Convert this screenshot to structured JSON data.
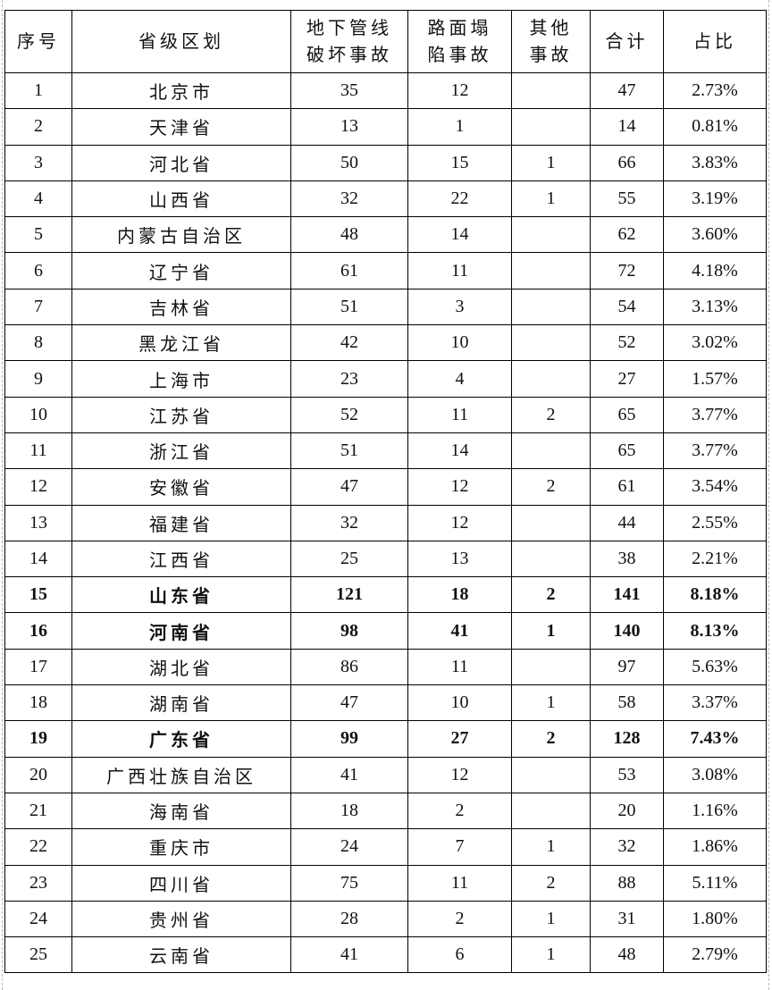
{
  "headers": [
    "序号",
    "省级区划",
    "地下管线破坏事故",
    "路面塌陷事故",
    "其他事故",
    "合计",
    "占比"
  ],
  "header_lines": [
    [
      "序号"
    ],
    [
      "省级区划"
    ],
    [
      "地下管线",
      "破坏事故"
    ],
    [
      "路面塌",
      "陷事故"
    ],
    [
      "其他",
      "事故"
    ],
    [
      "合计"
    ],
    [
      "占比"
    ]
  ],
  "rows": [
    {
      "no": "1",
      "name": "北京市",
      "pipe": "35",
      "road": "12",
      "other": "",
      "total": "47",
      "pct": "2.73%",
      "bold": false
    },
    {
      "no": "2",
      "name": "天津省",
      "pipe": "13",
      "road": "1",
      "other": "",
      "total": "14",
      "pct": "0.81%",
      "bold": false
    },
    {
      "no": "3",
      "name": "河北省",
      "pipe": "50",
      "road": "15",
      "other": "1",
      "total": "66",
      "pct": "3.83%",
      "bold": false
    },
    {
      "no": "4",
      "name": "山西省",
      "pipe": "32",
      "road": "22",
      "other": "1",
      "total": "55",
      "pct": "3.19%",
      "bold": false
    },
    {
      "no": "5",
      "name": "内蒙古自治区",
      "pipe": "48",
      "road": "14",
      "other": "",
      "total": "62",
      "pct": "3.60%",
      "bold": false
    },
    {
      "no": "6",
      "name": "辽宁省",
      "pipe": "61",
      "road": "11",
      "other": "",
      "total": "72",
      "pct": "4.18%",
      "bold": false
    },
    {
      "no": "7",
      "name": "吉林省",
      "pipe": "51",
      "road": "3",
      "other": "",
      "total": "54",
      "pct": "3.13%",
      "bold": false
    },
    {
      "no": "8",
      "name": "黑龙江省",
      "pipe": "42",
      "road": "10",
      "other": "",
      "total": "52",
      "pct": "3.02%",
      "bold": false
    },
    {
      "no": "9",
      "name": "上海市",
      "pipe": "23",
      "road": "4",
      "other": "",
      "total": "27",
      "pct": "1.57%",
      "bold": false
    },
    {
      "no": "10",
      "name": "江苏省",
      "pipe": "52",
      "road": "11",
      "other": "2",
      "total": "65",
      "pct": "3.77%",
      "bold": false
    },
    {
      "no": "11",
      "name": "浙江省",
      "pipe": "51",
      "road": "14",
      "other": "",
      "total": "65",
      "pct": "3.77%",
      "bold": false
    },
    {
      "no": "12",
      "name": "安徽省",
      "pipe": "47",
      "road": "12",
      "other": "2",
      "total": "61",
      "pct": "3.54%",
      "bold": false
    },
    {
      "no": "13",
      "name": "福建省",
      "pipe": "32",
      "road": "12",
      "other": "",
      "total": "44",
      "pct": "2.55%",
      "bold": false
    },
    {
      "no": "14",
      "name": "江西省",
      "pipe": "25",
      "road": "13",
      "other": "",
      "total": "38",
      "pct": "2.21%",
      "bold": false
    },
    {
      "no": "15",
      "name": "山东省",
      "pipe": "121",
      "road": "18",
      "other": "2",
      "total": "141",
      "pct": "8.18%",
      "bold": true
    },
    {
      "no": "16",
      "name": "河南省",
      "pipe": "98",
      "road": "41",
      "other": "1",
      "total": "140",
      "pct": "8.13%",
      "bold": true
    },
    {
      "no": "17",
      "name": "湖北省",
      "pipe": "86",
      "road": "11",
      "other": "",
      "total": "97",
      "pct": "5.63%",
      "bold": false
    },
    {
      "no": "18",
      "name": "湖南省",
      "pipe": "47",
      "road": "10",
      "other": "1",
      "total": "58",
      "pct": "3.37%",
      "bold": false
    },
    {
      "no": "19",
      "name": "广东省",
      "pipe": "99",
      "road": "27",
      "other": "2",
      "total": "128",
      "pct": "7.43%",
      "bold": true
    },
    {
      "no": "20",
      "name": "广西壮族自治区",
      "pipe": "41",
      "road": "12",
      "other": "",
      "total": "53",
      "pct": "3.08%",
      "bold": false
    },
    {
      "no": "21",
      "name": "海南省",
      "pipe": "18",
      "road": "2",
      "other": "",
      "total": "20",
      "pct": "1.16%",
      "bold": false
    },
    {
      "no": "22",
      "name": "重庆市",
      "pipe": "24",
      "road": "7",
      "other": "1",
      "total": "32",
      "pct": "1.86%",
      "bold": false
    },
    {
      "no": "23",
      "name": "四川省",
      "pipe": "75",
      "road": "11",
      "other": "2",
      "total": "88",
      "pct": "5.11%",
      "bold": false
    },
    {
      "no": "24",
      "name": "贵州省",
      "pipe": "28",
      "road": "2",
      "other": "1",
      "total": "31",
      "pct": "1.80%",
      "bold": false
    },
    {
      "no": "25",
      "name": "云南省",
      "pipe": "41",
      "road": "6",
      "other": "1",
      "total": "48",
      "pct": "2.79%",
      "bold": false
    }
  ]
}
